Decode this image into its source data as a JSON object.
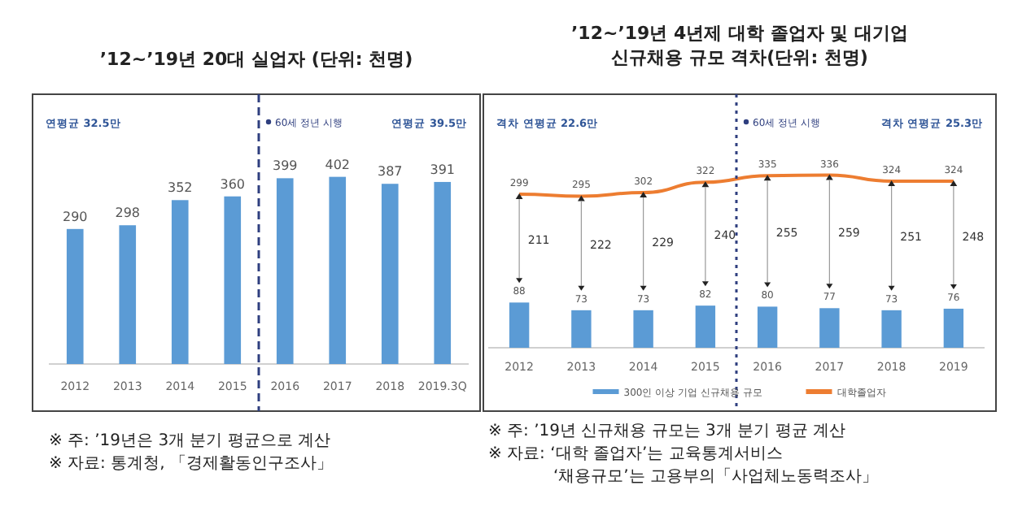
{
  "chart_data": [
    {
      "type": "bar",
      "title": "’12~’19년 20대 실업자 (단위: 천명)",
      "categories": [
        "2012",
        "2013",
        "2014",
        "2015",
        "2016",
        "2017",
        "2018",
        "2019.3Q"
      ],
      "values": [
        290,
        298,
        352,
        360,
        399,
        402,
        387,
        391
      ],
      "color": "#5b9bd5",
      "data_labels": true,
      "annotations": [
        "연평균 32.5만",
        "연평균 39.5만",
        "60세 정년 시행",
        "※ 주: ’19년은 3개 분기 평균으로 계산",
        "※ 자료: 통계청, 「경제활동인구조사」"
      ]
    },
    {
      "type": "bar",
      "title": "’12~’19년 4년제 대학 졸업자 및 대기업 신규채용 규모 격차(단위: 천명)",
      "categories": [
        "2012",
        "2013",
        "2014",
        "2015",
        "2016",
        "2017",
        "2018",
        "2019"
      ],
      "series": [
        {
          "name": "300인 이상 기업 신규채용 규모",
          "color": "#5b9bd5",
          "values": [
            88,
            73,
            73,
            82,
            80,
            77,
            73,
            76
          ]
        },
        {
          "name": "대학졸업자",
          "type": "line",
          "marker": "triangle",
          "color": "#ed7d31",
          "values": [
            299,
            295,
            302,
            322,
            335,
            336,
            324,
            324
          ]
        }
      ],
      "data_labels": true,
      "legend": "bottom",
      "annotations": [
        "격차 연평균 22.6만",
        "격차 연평균 25.3만",
        "60세 정년 시행",
        "211",
        "222",
        "229",
        "240",
        "255",
        "259",
        "251",
        "248",
        "※ 주: ’19년 신규채용 규모는 3개 분기 평균 계산",
        "※ 자료: ‘대학 졸업자’는 교육통계서비스",
        "‘채용규모’는 고용부의「사업체노동력조사」"
      ]
    }
  ]
}
